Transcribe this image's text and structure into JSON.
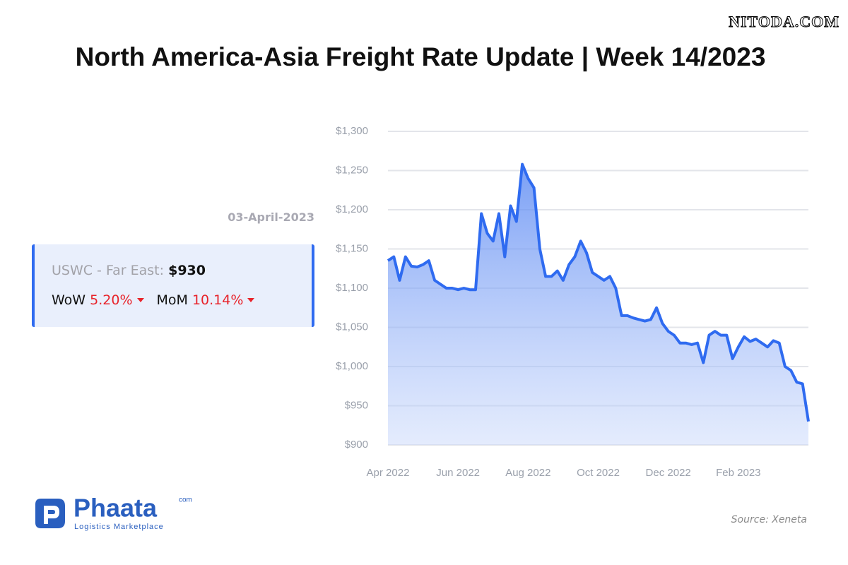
{
  "header": {
    "watermark": "NITODA.COM",
    "title": "North America-Asia Freight Rate Update | Week 14/2023"
  },
  "panel": {
    "date": "03-April-2023",
    "route": "USWC - Far East:",
    "price": "$930",
    "wow_label": "WoW",
    "wow": "5.20%",
    "mom_label": "MoM",
    "mom": "10.14%"
  },
  "logo": {
    "name": "Phaata",
    "domain": "com",
    "tagline": "Logistics Marketplace"
  },
  "source": "Source: Xeneta",
  "chart_data": {
    "type": "area",
    "color": "#2f6bf0",
    "grid": true,
    "categories": [
      "Apr 2022",
      null,
      null,
      null,
      null,
      null,
      null,
      null,
      null,
      null,
      null,
      null,
      "Jun 2022",
      null,
      null,
      null,
      null,
      null,
      null,
      null,
      null,
      null,
      null,
      null,
      "Aug 2022",
      null,
      null,
      null,
      null,
      null,
      null,
      null,
      null,
      null,
      null,
      null,
      "Oct 2022",
      null,
      null,
      null,
      null,
      null,
      null,
      null,
      null,
      null,
      null,
      null,
      "Dec 2022",
      null,
      null,
      null,
      null,
      null,
      null,
      null,
      null,
      null,
      null,
      null,
      "Feb 2023",
      null,
      null,
      null,
      null,
      null,
      null,
      null,
      null,
      null,
      null,
      null,
      null
    ],
    "values": [
      1135,
      1140,
      1110,
      1140,
      1128,
      1127,
      1130,
      1135,
      1110,
      1105,
      1100,
      1100,
      1098,
      1100,
      1098,
      1098,
      1195,
      1170,
      1160,
      1195,
      1140,
      1205,
      1185,
      1258,
      1240,
      1228,
      1150,
      1115,
      1115,
      1122,
      1110,
      1130,
      1140,
      1160,
      1145,
      1120,
      1115,
      1110,
      1115,
      1100,
      1065,
      1065,
      1062,
      1060,
      1058,
      1060,
      1075,
      1055,
      1045,
      1040,
      1030,
      1030,
      1028,
      1030,
      1005,
      1040,
      1045,
      1040,
      1040,
      1010,
      1025,
      1038,
      1032,
      1035,
      1030,
      1025,
      1033,
      1030,
      1000,
      995,
      980,
      978,
      930
    ],
    "ylim": [
      900,
      1300
    ],
    "yticks": [
      {
        "value": 900,
        "label": "$900"
      },
      {
        "value": 950,
        "label": "$950"
      },
      {
        "value": 1000,
        "label": "$1,000"
      },
      {
        "value": 1050,
        "label": "$1,050"
      },
      {
        "value": 1100,
        "label": "$1,100"
      },
      {
        "value": 1150,
        "label": "$1,150"
      },
      {
        "value": 1200,
        "label": "$1,200"
      },
      {
        "value": 1250,
        "label": "$1,250"
      },
      {
        "value": 1300,
        "label": "$1,300"
      }
    ]
  }
}
